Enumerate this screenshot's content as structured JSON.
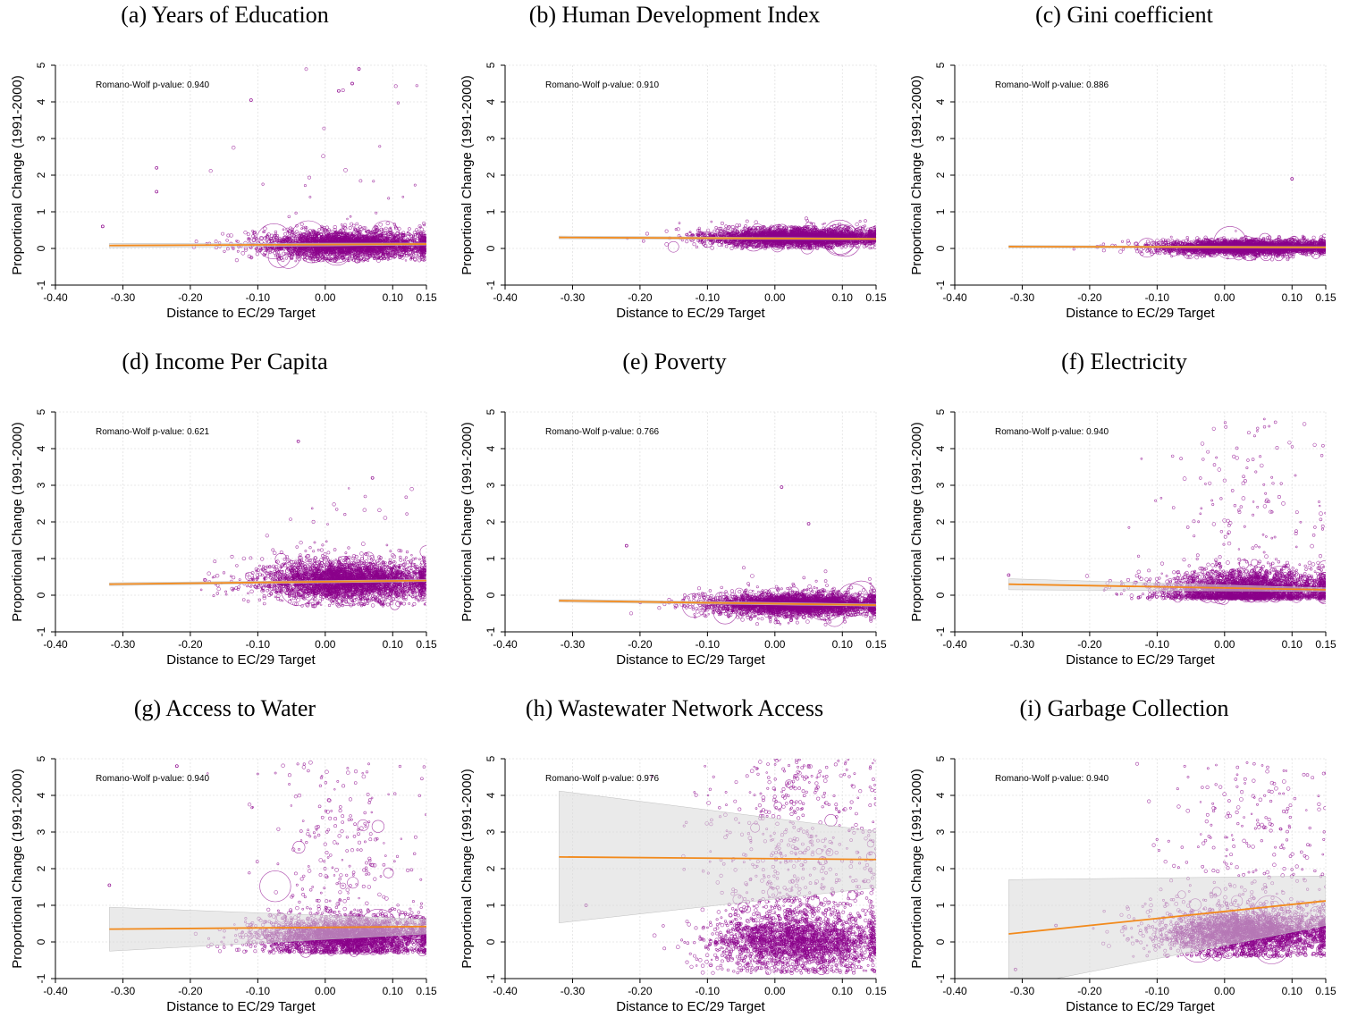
{
  "colors": {
    "points": "#8b008b",
    "fit_line": "#f28a1c",
    "ci_band": "#d9d9d9",
    "grid": "#e2e2e2"
  },
  "chart_data": [
    {
      "type": "scatter",
      "title": "(a) Years of Education",
      "xlabel": "Distance to EC/29 Target",
      "ylabel": "Proportional Change (1991-2000)",
      "annotation": "Romano-Wolf p-value: 0.940",
      "xlim": [
        -0.4,
        0.15
      ],
      "ylim": [
        -1,
        5
      ],
      "x_ticks": [
        "-0.40",
        "-0.30",
        "-0.20",
        "-0.10",
        "0.00",
        "0.10",
        "0.15"
      ],
      "x_tick_values": [
        -0.4,
        -0.3,
        -0.2,
        -0.1,
        0.0,
        0.1,
        0.15
      ],
      "y_ticks": [
        "-1",
        "0",
        "1",
        "2",
        "3",
        "4",
        "5"
      ],
      "y_tick_values": [
        -1,
        0,
        1,
        2,
        3,
        4,
        5
      ],
      "fit": {
        "x": [
          -0.32,
          0.15
        ],
        "y": [
          0.08,
          0.12
        ]
      },
      "ci": {
        "x": [
          -0.32,
          0.15
        ],
        "lower": [
          0.02,
          0.09
        ],
        "upper": [
          0.14,
          0.15
        ]
      },
      "scatter": {
        "n": 3000,
        "center_y": 0.1,
        "spread": 0.2,
        "tail_max": 4.9,
        "tail_prob": 0.01,
        "y_floor": -0.35
      },
      "outliers": [
        {
          "x": -0.25,
          "y": 2.2
        },
        {
          "x": -0.25,
          "y": 1.55
        },
        {
          "x": -0.33,
          "y": 0.6
        },
        {
          "x": -0.11,
          "y": 4.05
        },
        {
          "x": 0.02,
          "y": 4.3
        },
        {
          "x": 0.04,
          "y": 4.5
        },
        {
          "x": 0.05,
          "y": 4.9
        }
      ],
      "grid": true
    },
    {
      "type": "scatter",
      "title": "(b) Human Development Index",
      "xlabel": "Distance to EC/29 Target",
      "ylabel": "Proportional Change (1991-2000)",
      "annotation": "Romano-Wolf p-value: 0.910",
      "xlim": [
        -0.4,
        0.15
      ],
      "ylim": [
        -1,
        5
      ],
      "x_ticks": [
        "-0.40",
        "-0.30",
        "-0.20",
        "-0.10",
        "0.00",
        "0.10",
        "0.15"
      ],
      "x_tick_values": [
        -0.4,
        -0.3,
        -0.2,
        -0.1,
        0.0,
        0.1,
        0.15
      ],
      "y_ticks": [
        "-1",
        "0",
        "1",
        "2",
        "3",
        "4",
        "5"
      ],
      "y_tick_values": [
        -1,
        0,
        1,
        2,
        3,
        4,
        5
      ],
      "fit": {
        "x": [
          -0.32,
          0.15
        ],
        "y": [
          0.3,
          0.26
        ]
      },
      "ci": {
        "x": [
          -0.32,
          0.15
        ],
        "lower": [
          0.26,
          0.24
        ],
        "upper": [
          0.34,
          0.28
        ]
      },
      "scatter": {
        "n": 3200,
        "center_y": 0.3,
        "spread": 0.13,
        "tail_max": 1.0,
        "tail_prob": 0.0,
        "y_floor": 0.0
      },
      "outliers": [],
      "grid": true
    },
    {
      "type": "scatter",
      "title": "(c) Gini coefficient",
      "xlabel": "Distance to EC/29 Target",
      "ylabel": "Proportional Change (1991-2000)",
      "annotation": "Romano-Wolf p-value: 0.886",
      "xlim": [
        -0.4,
        0.15
      ],
      "ylim": [
        -1,
        5
      ],
      "x_ticks": [
        "-0.40",
        "-0.30",
        "-0.20",
        "-0.10",
        "0.00",
        "0.10",
        "0.15"
      ],
      "x_tick_values": [
        -0.4,
        -0.3,
        -0.2,
        -0.1,
        0.0,
        0.1,
        0.15
      ],
      "y_ticks": [
        "-1",
        "0",
        "1",
        "2",
        "3",
        "4",
        "5"
      ],
      "y_tick_values": [
        -1,
        0,
        1,
        2,
        3,
        4,
        5
      ],
      "fit": {
        "x": [
          -0.32,
          0.15
        ],
        "y": [
          0.05,
          0.03
        ]
      },
      "ci": {
        "x": [
          -0.32,
          0.15
        ],
        "lower": [
          0.02,
          0.01
        ],
        "upper": [
          0.08,
          0.05
        ]
      },
      "scatter": {
        "n": 3200,
        "center_y": 0.03,
        "spread": 0.1,
        "tail_max": 0.8,
        "tail_prob": 0.0,
        "y_floor": -0.3
      },
      "outliers": [
        {
          "x": 0.1,
          "y": 1.9
        }
      ],
      "grid": true
    },
    {
      "type": "scatter",
      "title": "(d) Income Per Capita",
      "xlabel": "Distance to EC/29 Target",
      "ylabel": "Proportional Change (1991-2000)",
      "annotation": "Romano-Wolf p-value: 0.621",
      "xlim": [
        -0.4,
        0.15
      ],
      "ylim": [
        -1,
        5
      ],
      "x_ticks": [
        "-0.40",
        "-0.30",
        "-0.20",
        "-0.10",
        "0.00",
        "0.10",
        "0.15"
      ],
      "x_tick_values": [
        -0.4,
        -0.3,
        -0.2,
        -0.1,
        0.0,
        0.1,
        0.15
      ],
      "y_ticks": [
        "-1",
        "0",
        "1",
        "2",
        "3",
        "4",
        "5"
      ],
      "y_tick_values": [
        -1,
        0,
        1,
        2,
        3,
        4,
        5
      ],
      "fit": {
        "x": [
          -0.32,
          0.15
        ],
        "y": [
          0.3,
          0.4
        ]
      },
      "ci": {
        "x": [
          -0.32,
          0.15
        ],
        "lower": [
          0.26,
          0.37
        ],
        "upper": [
          0.34,
          0.43
        ]
      },
      "scatter": {
        "n": 3200,
        "center_y": 0.4,
        "spread": 0.3,
        "tail_max": 3.0,
        "tail_prob": 0.01,
        "y_floor": -0.3
      },
      "outliers": [
        {
          "x": -0.04,
          "y": 4.2
        },
        {
          "x": 0.07,
          "y": 3.2
        }
      ],
      "grid": true
    },
    {
      "type": "scatter",
      "title": "(e) Poverty",
      "xlabel": "Distance to EC/29 Target",
      "ylabel": "Proportional Change (1991-2000)",
      "annotation": "Romano-Wolf p-value: 0.766",
      "xlim": [
        -0.4,
        0.15
      ],
      "ylim": [
        -1,
        5
      ],
      "x_ticks": [
        "-0.40",
        "-0.30",
        "-0.20",
        "-0.10",
        "0.00",
        "0.10",
        "0.15"
      ],
      "x_tick_values": [
        -0.4,
        -0.3,
        -0.2,
        -0.1,
        0.0,
        0.1,
        0.15
      ],
      "y_ticks": [
        "-1",
        "0",
        "1",
        "2",
        "3",
        "4",
        "5"
      ],
      "y_tick_values": [
        -1,
        0,
        1,
        2,
        3,
        4,
        5
      ],
      "fit": {
        "x": [
          -0.32,
          0.15
        ],
        "y": [
          -0.15,
          -0.27
        ]
      },
      "ci": {
        "x": [
          -0.32,
          0.15
        ],
        "lower": [
          -0.19,
          -0.3
        ],
        "upper": [
          -0.11,
          -0.24
        ]
      },
      "scatter": {
        "n": 3200,
        "center_y": -0.25,
        "spread": 0.17,
        "tail_max": 0.8,
        "tail_prob": 0.005,
        "y_floor": -0.8
      },
      "outliers": [
        {
          "x": -0.22,
          "y": 1.35
        },
        {
          "x": 0.01,
          "y": 2.95
        },
        {
          "x": 0.05,
          "y": 1.95
        }
      ],
      "grid": true
    },
    {
      "type": "scatter",
      "title": "(f) Electricity",
      "xlabel": "Distance to EC/29 Target",
      "ylabel": "Proportional Change (1991-2000)",
      "annotation": "Romano-Wolf p-value: 0.940",
      "xlim": [
        -0.4,
        0.15
      ],
      "ylim": [
        -1,
        5
      ],
      "x_ticks": [
        "-0.40",
        "-0.30",
        "-0.20",
        "-0.10",
        "0.00",
        "0.10",
        "0.15"
      ],
      "x_tick_values": [
        -0.4,
        -0.3,
        -0.2,
        -0.1,
        0.0,
        0.1,
        0.15
      ],
      "y_ticks": [
        "-1",
        "0",
        "1",
        "2",
        "3",
        "4",
        "5"
      ],
      "y_tick_values": [
        -1,
        0,
        1,
        2,
        3,
        4,
        5
      ],
      "fit": {
        "x": [
          -0.32,
          0.15
        ],
        "y": [
          0.3,
          0.15
        ]
      },
      "ci": {
        "x": [
          -0.32,
          0.15
        ],
        "lower": [
          0.15,
          0.1
        ],
        "upper": [
          0.45,
          0.2
        ]
      },
      "scatter": {
        "n": 3000,
        "center_y": 0.15,
        "spread": 0.28,
        "tail_max": 4.9,
        "tail_prob": 0.06,
        "y_floor": -0.1
      },
      "outliers": [
        {
          "x": -0.32,
          "y": 0.55
        }
      ],
      "grid": true
    },
    {
      "type": "scatter",
      "title": "(g) Access to Water",
      "xlabel": "Distance to EC/29 Target",
      "ylabel": "Proportional Change (1991-2000)",
      "annotation": "Romano-Wolf p-value: 0.940",
      "xlim": [
        -0.4,
        0.15
      ],
      "ylim": [
        -1,
        5
      ],
      "x_ticks": [
        "-0.40",
        "-0.30",
        "-0.20",
        "-0.10",
        "0.00",
        "0.10",
        "0.15"
      ],
      "x_tick_values": [
        -0.4,
        -0.3,
        -0.2,
        -0.1,
        0.0,
        0.1,
        0.15
      ],
      "y_ticks": [
        "-1",
        "0",
        "1",
        "2",
        "3",
        "4",
        "5"
      ],
      "y_tick_values": [
        -1,
        0,
        1,
        2,
        3,
        4,
        5
      ],
      "fit": {
        "x": [
          -0.32,
          0.15
        ],
        "y": [
          0.35,
          0.42
        ]
      },
      "ci": {
        "x": [
          -0.32,
          0.15
        ],
        "lower": [
          -0.25,
          0.22
        ],
        "upper": [
          0.95,
          0.62
        ]
      },
      "scatter": {
        "n": 3000,
        "center_y": 0.15,
        "spread": 0.3,
        "tail_max": 4.9,
        "tail_prob": 0.1,
        "y_floor": -0.3
      },
      "outliers": [
        {
          "x": -0.32,
          "y": 1.55
        },
        {
          "x": -0.22,
          "y": 4.8
        }
      ],
      "grid": true
    },
    {
      "type": "scatter",
      "title": "(h) Wastewater Network Access",
      "xlabel": "Distance to EC/29 Target",
      "ylabel": "Proportional Change (1991-2000)",
      "annotation": "Romano-Wolf p-value: 0.976",
      "xlim": [
        -0.4,
        0.15
      ],
      "ylim": [
        -1,
        5
      ],
      "x_ticks": [
        "-0.40",
        "-0.30",
        "-0.20",
        "-0.10",
        "0.00",
        "0.10",
        "0.15"
      ],
      "x_tick_values": [
        -0.4,
        -0.3,
        -0.2,
        -0.1,
        0.0,
        0.1,
        0.15
      ],
      "y_ticks": [
        "-1",
        "0",
        "1",
        "2",
        "3",
        "4",
        "5"
      ],
      "y_tick_values": [
        -1,
        0,
        1,
        2,
        3,
        4,
        5
      ],
      "fit": {
        "x": [
          -0.32,
          0.15
        ],
        "y": [
          2.32,
          2.25
        ]
      },
      "ci": {
        "x": [
          -0.32,
          0.15
        ],
        "lower": [
          0.52,
          1.48
        ],
        "upper": [
          4.12,
          3.02
        ]
      },
      "scatter": {
        "n": 2800,
        "center_y": 0.0,
        "spread": 0.45,
        "tail_max": 5.0,
        "tail_prob": 0.28,
        "y_floor": -0.85
      },
      "outliers": [
        {
          "x": -0.28,
          "y": 1.0
        }
      ],
      "grid": true
    },
    {
      "type": "scatter",
      "title": "(i) Garbage Collection",
      "xlabel": "Distance to EC/29 Target",
      "ylabel": "Proportional Change (1991-2000)",
      "annotation": "Romano-Wolf p-value: 0.940",
      "xlim": [
        -0.4,
        0.15
      ],
      "ylim": [
        -1,
        5
      ],
      "x_ticks": [
        "-0.40",
        "-0.30",
        "-0.20",
        "-0.10",
        "0.00",
        "0.10",
        "0.15"
      ],
      "x_tick_values": [
        -0.4,
        -0.3,
        -0.2,
        -0.1,
        0.0,
        0.1,
        0.15
      ],
      "y_ticks": [
        "-1",
        "0",
        "1",
        "2",
        "3",
        "4",
        "5"
      ],
      "y_tick_values": [
        -1,
        0,
        1,
        2,
        3,
        4,
        5
      ],
      "fit": {
        "x": [
          -0.32,
          0.15
        ],
        "y": [
          0.22,
          1.12
        ]
      },
      "ci": {
        "x": [
          -0.32,
          0.15
        ],
        "lower": [
          -1.25,
          0.45
        ],
        "upper": [
          1.7,
          1.8
        ]
      },
      "scatter": {
        "n": 3000,
        "center_y": 0.25,
        "spread": 0.35,
        "tail_max": 4.9,
        "tail_prob": 0.12,
        "y_floor": -0.4
      },
      "outliers": [
        {
          "x": -0.31,
          "y": -0.75
        },
        {
          "x": -0.25,
          "y": 0.45
        }
      ],
      "grid": true
    }
  ]
}
